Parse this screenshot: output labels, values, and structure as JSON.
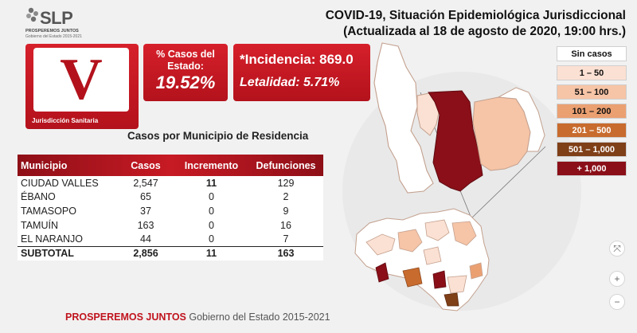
{
  "logo": {
    "text": "SLP",
    "line1": "PROSPEREMOS JUNTOS",
    "line2": "Gobierno del Estado 2015-2021"
  },
  "title": {
    "line1": "COVID-19, Situación Epidemiológica Jurisdiccional",
    "line2": "(Actualizada al 18 de agosto de 2020, 19:00 hrs.)"
  },
  "jurisdiction": {
    "letter": "V",
    "label": "Jurisdicción Sanitaria"
  },
  "percent": {
    "label_line1": "% Casos del",
    "label_line2": "Estado:",
    "value": "19.52%"
  },
  "incidence": {
    "incidencia": "*Incidencia: 869.0",
    "letalidad": "Letalidad: 5.71%"
  },
  "table": {
    "title": "Casos por Municipio  de Residencia",
    "headers": [
      "Municipio",
      "Casos",
      "Incremento",
      "Defunciones"
    ],
    "rows": [
      [
        "CIUDAD VALLES",
        "2,547",
        "11",
        "129"
      ],
      [
        "ÉBANO",
        "65",
        "0",
        "2"
      ],
      [
        "TAMASOPO",
        "37",
        "0",
        "9"
      ],
      [
        "TAMUÍN",
        "163",
        "0",
        "16"
      ],
      [
        "EL NARANJO",
        "44",
        "0",
        "7"
      ]
    ],
    "total": [
      "SUBTOTAL",
      "2,856",
      "11",
      "163"
    ]
  },
  "legend": {
    "items": [
      {
        "label": "Sin casos",
        "bg": "#ffffff",
        "fg": "#111111"
      },
      {
        "label": "1 – 50",
        "bg": "#fbe1d3",
        "fg": "#111111"
      },
      {
        "label": "51 – 100",
        "bg": "#f6c4a6",
        "fg": "#111111"
      },
      {
        "label": "101 – 200",
        "bg": "#eba072",
        "fg": "#111111"
      },
      {
        "label": "201 – 500",
        "bg": "#c86b2e",
        "fg": "#ffffff"
      },
      {
        "label": "501 – 1,000",
        "bg": "#7f3f17",
        "fg": "#ffffff"
      },
      {
        "label": "+ 1,000",
        "bg": "#8a0f18",
        "fg": "#ffffff"
      }
    ]
  },
  "controls": {
    "fit": "⤧",
    "zoom_in": "+",
    "zoom_out": "−"
  },
  "footer": {
    "red": "PROSPEREMOS JUNTOS",
    "gray": "Gobierno del Estado 2015-2021"
  }
}
